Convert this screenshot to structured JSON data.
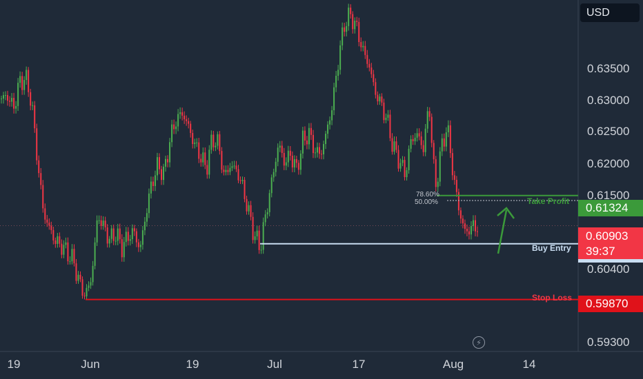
{
  "currency": "USD",
  "chart_data": {
    "type": "candlestick",
    "x_tick_labels": [
      "19",
      "Jun",
      "19",
      "Jul",
      "17",
      "Aug",
      "14"
    ],
    "y_tick_labels": [
      "0.63500",
      "0.63000",
      "0.62500",
      "0.62000",
      "0.61500",
      "0.60400",
      "0.59300"
    ],
    "ylim": [
      0.5924,
      0.6402
    ],
    "grid": false,
    "close_path": [
      0.6268,
      0.6272,
      0.6254,
      0.629,
      0.6298,
      0.6264,
      0.618,
      0.6108,
      0.6086,
      0.6068,
      0.6062,
      0.6052,
      0.604,
      0.6008,
      0.5992,
      0.602,
      0.6105,
      0.6088,
      0.607,
      0.608,
      0.606,
      0.6075,
      0.6082,
      0.6056,
      0.6108,
      0.6152,
      0.6175,
      0.6162,
      0.6212,
      0.6238,
      0.6248,
      0.623,
      0.6205,
      0.6188,
      0.617,
      0.6212,
      0.6205,
      0.6158,
      0.6175,
      0.6168,
      0.6145,
      0.611,
      0.6076,
      0.606,
      0.6112,
      0.6158,
      0.6205,
      0.6178,
      0.619,
      0.6168,
      0.6208,
      0.622,
      0.6195,
      0.619,
      0.6222,
      0.6262,
      0.6328,
      0.6375,
      0.6385,
      0.6365,
      0.6335,
      0.6315,
      0.6278,
      0.626,
      0.6238,
      0.62,
      0.6182,
      0.6162,
      0.621,
      0.6218,
      0.6198,
      0.626,
      0.614,
      0.6198,
      0.623,
      0.616,
      0.611,
      0.608,
      0.6088,
      0.609
    ],
    "levels": {
      "take_profit": {
        "label": "Take Profit",
        "price": "0.61324",
        "color": "#3b9a3a",
        "value": 0.61324
      },
      "buy_entry": {
        "label": "Buy Entry",
        "value": 0.6065,
        "color": "#c9ddf1"
      },
      "stop_loss": {
        "label": "Stop Loss",
        "price": "0.59870",
        "color": "#e0121a",
        "value": 0.5987
      },
      "current": {
        "price": "0.60903",
        "countdown": "39:37",
        "color": "#f23645",
        "value": 0.60903
      }
    },
    "fib_labels": [
      "78.60%",
      "50.00%"
    ],
    "colors": {
      "up": "#4caf50",
      "down": "#f23645",
      "background": "#1f2a38"
    }
  }
}
